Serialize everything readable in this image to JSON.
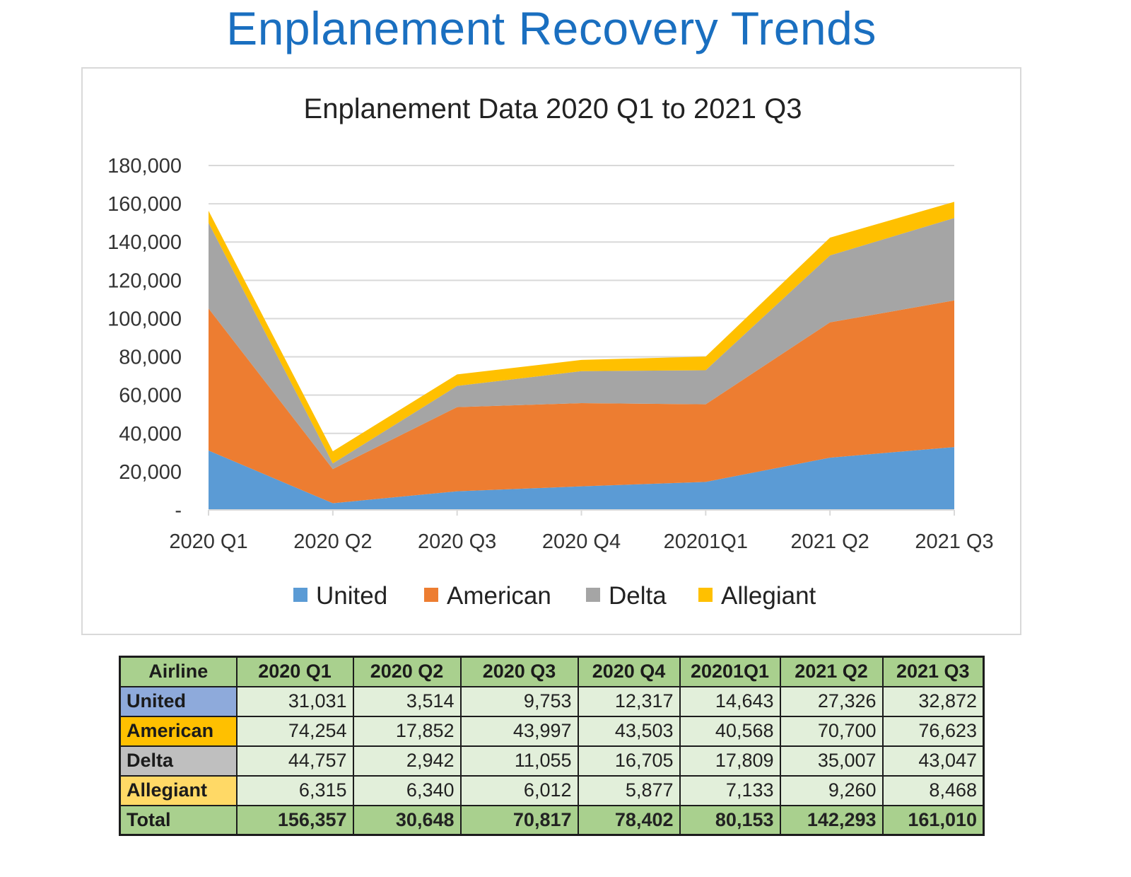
{
  "page": {
    "title": "Enplanement Recovery Trends"
  },
  "chart_data": {
    "type": "area",
    "stacked": true,
    "title": "Enplanement Data 2020 Q1 to 2021 Q3",
    "xlabel": "",
    "ylabel": "",
    "categories": [
      "2020 Q1",
      "2020 Q2",
      "2020 Q3",
      "2020 Q4",
      "20201Q1",
      "2021 Q2",
      "2021 Q3"
    ],
    "ylim": [
      0,
      180000
    ],
    "yticks": [
      0,
      20000,
      40000,
      60000,
      80000,
      100000,
      120000,
      140000,
      160000,
      180000
    ],
    "ytick_labels": [
      "-",
      "20,000",
      "40,000",
      "60,000",
      "80,000",
      "100,000",
      "120,000",
      "140,000",
      "160,000",
      "180,000"
    ],
    "grid": true,
    "legend_position": "bottom",
    "series": [
      {
        "name": "United",
        "color": "#5b9bd5",
        "values": [
          31031,
          3514,
          9753,
          12317,
          14643,
          27326,
          32872
        ]
      },
      {
        "name": "American",
        "color": "#ed7d31",
        "values": [
          74254,
          17852,
          43997,
          43503,
          40568,
          70700,
          76623
        ]
      },
      {
        "name": "Delta",
        "color": "#a5a5a5",
        "values": [
          44757,
          2942,
          11055,
          16705,
          17809,
          35007,
          43047
        ]
      },
      {
        "name": "Allegiant",
        "color": "#ffc000",
        "values": [
          6315,
          6340,
          6012,
          5877,
          7133,
          9260,
          8468
        ]
      }
    ]
  },
  "table": {
    "header": [
      "Airline",
      "2020 Q1",
      "2020 Q2",
      "2020 Q3",
      "2020 Q4",
      "20201Q1",
      "2021 Q2",
      "2021 Q3"
    ],
    "rows": [
      {
        "label": "United",
        "color": "#8eaadb",
        "cells": [
          "31,031",
          "3,514",
          "9,753",
          "12,317",
          "14,643",
          "27,326",
          "32,872"
        ]
      },
      {
        "label": "American",
        "color": "#ffc000",
        "cells": [
          "74,254",
          "17,852",
          "43,997",
          "43,503",
          "40,568",
          "70,700",
          "76,623"
        ]
      },
      {
        "label": "Delta",
        "color": "#bfbfbf",
        "cells": [
          "44,757",
          "2,942",
          "11,055",
          "16,705",
          "17,809",
          "35,007",
          "43,047"
        ]
      },
      {
        "label": "Allegiant",
        "color": "#ffd966",
        "cells": [
          "6,315",
          "6,340",
          "6,012",
          "5,877",
          "7,133",
          "9,260",
          "8,468"
        ]
      }
    ],
    "total": {
      "label": "Total",
      "cells": [
        "156,357",
        "30,648",
        "70,817",
        "78,402",
        "80,153",
        "142,293",
        "161,010"
      ]
    }
  }
}
